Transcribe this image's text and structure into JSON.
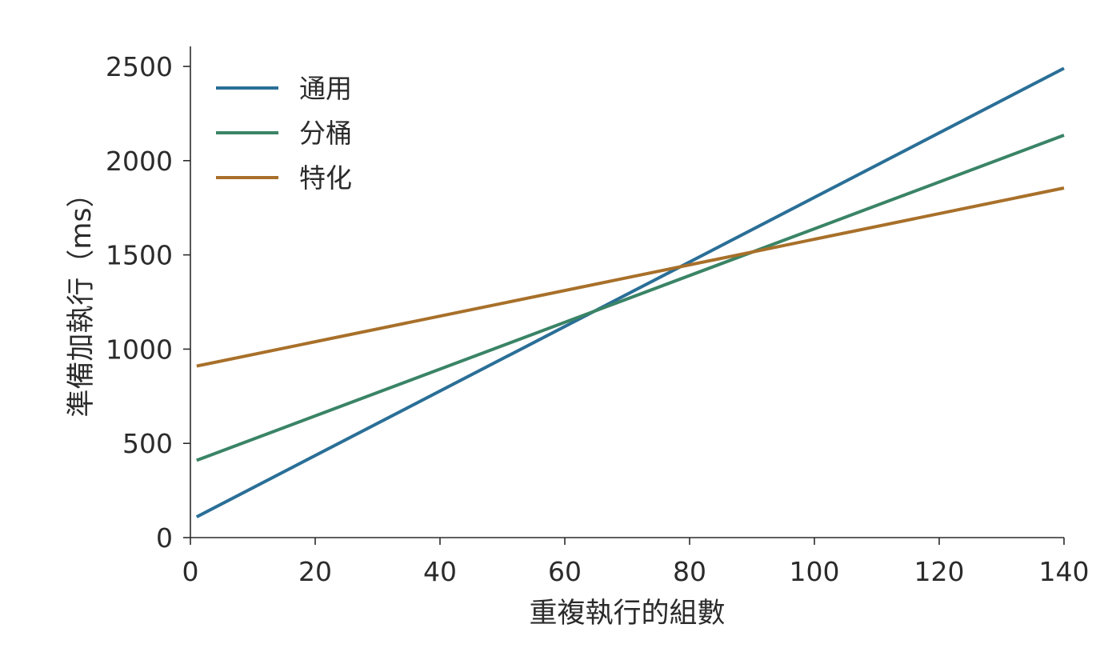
{
  "chart_data": {
    "type": "line",
    "title": "",
    "xlabel": "重複執行的組數",
    "ylabel": "準備加執行（ms）",
    "xlim": [
      0,
      140
    ],
    "ylim": [
      0,
      2600
    ],
    "xticks": [
      0,
      20,
      40,
      60,
      80,
      100,
      120,
      140
    ],
    "yticks": [
      0,
      500,
      1000,
      1500,
      2000,
      2500
    ],
    "grid": false,
    "legend_position": "top-left",
    "series": [
      {
        "name": "通用",
        "color": "#2a6f97",
        "x": [
          1,
          140
        ],
        "y": [
          110,
          2490
        ]
      },
      {
        "name": "分桶",
        "color": "#3a8466",
        "x": [
          1,
          140
        ],
        "y": [
          410,
          2135
        ]
      },
      {
        "name": "特化",
        "color": "#a8702a",
        "x": [
          1,
          140
        ],
        "y": [
          910,
          1855
        ]
      }
    ]
  }
}
